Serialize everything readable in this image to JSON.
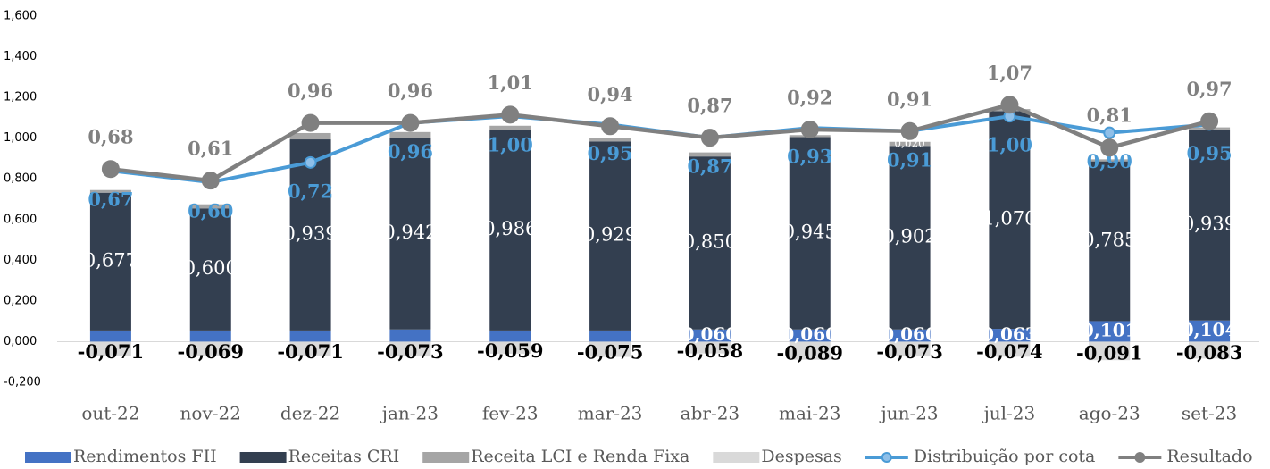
{
  "chart_data": {
    "type": "bar",
    "categories": [
      "out-22",
      "nov-22",
      "dez-22",
      "jan-23",
      "fev-23",
      "mar-23",
      "abr-23",
      "mai-23",
      "jun-23",
      "jul-23",
      "ago-23",
      "set-23"
    ],
    "series": [
      {
        "name": "Rendimentos FII",
        "color": "#4472c4",
        "values": [
          0.055,
          0.055,
          0.055,
          0.06,
          0.055,
          0.055,
          0.06,
          0.06,
          0.06,
          0.063,
          0.101,
          0.104
        ],
        "value_labels": [
          null,
          null,
          null,
          null,
          null,
          null,
          "0,060",
          "0,060",
          "0,060",
          "0,063",
          "0,101",
          "0,104"
        ]
      },
      {
        "name": "Receitas CRI",
        "color": "#333f50",
        "values": [
          0.677,
          0.6,
          0.939,
          0.942,
          0.986,
          0.929,
          0.85,
          0.945,
          0.902,
          1.07,
          0.785,
          0.939
        ],
        "value_labels": [
          "0,677",
          "0,600",
          "0,939",
          "0,942",
          "0,986",
          "0,929",
          "0,850",
          "0,945",
          "0,902",
          "1,070",
          "0,785",
          "0,939"
        ]
      },
      {
        "name": "Receita LCI e Renda Fixa",
        "color": "#a5a5a5",
        "values": [
          0.013,
          0.02,
          0.031,
          0.028,
          0.02,
          0.015,
          0.02,
          0.01,
          0.02,
          0.01,
          0.01,
          0.01
        ],
        "value_labels": [
          null,
          null,
          null,
          null,
          null,
          null,
          null,
          null,
          "0,020",
          null,
          null,
          null
        ]
      },
      {
        "name": "Despesas",
        "color": "#d9d9d9",
        "values": [
          -0.071,
          -0.069,
          -0.071,
          -0.073,
          -0.059,
          -0.075,
          -0.058,
          -0.089,
          -0.073,
          -0.074,
          -0.091,
          -0.083
        ],
        "value_labels": [
          "-0,071",
          "-0,069",
          "-0,071",
          "-0,073",
          "-0,059",
          "-0,075",
          "-0,058",
          "-0,089",
          "-0,073",
          "-0,074",
          "-0,091",
          "-0,083"
        ]
      },
      {
        "name": "Distribuição por cota",
        "color": "#4a9bd6",
        "type": "line",
        "axis": "y2",
        "values": [
          0.67,
          0.6,
          0.72,
          0.96,
          1.0,
          0.95,
          0.87,
          0.93,
          0.91,
          1.0,
          0.9,
          0.95
        ],
        "value_labels": [
          "0,67",
          "0,60",
          "0,72",
          "0,96",
          "1,00",
          "0,95",
          "0,87",
          "0,93",
          "0,91",
          "1,00",
          "0,90",
          "0,95"
        ]
      },
      {
        "name": "Resultado",
        "color": "#808080",
        "type": "line",
        "axis": "y2",
        "values": [
          0.68,
          0.61,
          0.96,
          0.96,
          1.01,
          0.94,
          0.87,
          0.92,
          0.91,
          1.07,
          0.81,
          0.97
        ],
        "value_labels": [
          "0,68",
          "0,61",
          "0,96",
          "0,96",
          "1,01",
          "0,94",
          "0,87",
          "0,92",
          "0,91",
          "1,07",
          "0,81",
          "0,97"
        ]
      }
    ],
    "ylim": [
      -0.2,
      1.6
    ],
    "yticks": [
      {
        "value": -0.2,
        "label": "-0,200"
      },
      {
        "value": 0,
        "label": "0,000"
      },
      {
        "value": 0.2,
        "label": "0,200"
      },
      {
        "value": 0.4,
        "label": "0,400"
      },
      {
        "value": 0.6,
        "label": "0,600"
      },
      {
        "value": 0.8,
        "label": "0,800"
      },
      {
        "value": 1.0,
        "label": "1,000"
      },
      {
        "value": 1.2,
        "label": "1,200"
      },
      {
        "value": 1.4,
        "label": "1,400"
      },
      {
        "value": 1.6,
        "label": "1,600"
      }
    ],
    "y2lim": [
      -0.614,
      1.608
    ],
    "legend": "bottom"
  }
}
